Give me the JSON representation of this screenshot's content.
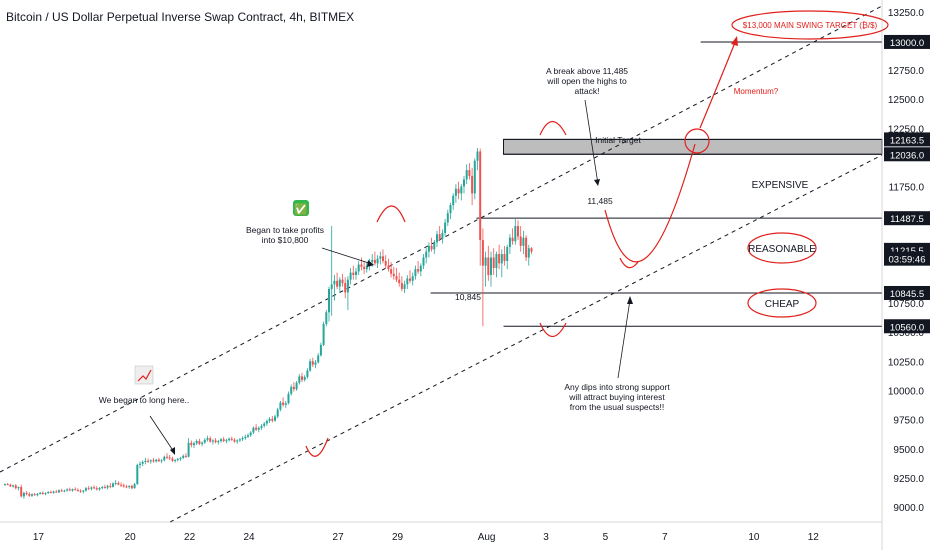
{
  "header": {
    "title": "Bitcoin / US Dollar Perpetual Inverse Swap Contract, 4h, BITMEX"
  },
  "colors": {
    "up": "#26a69a",
    "down": "#ef5350",
    "annotation_red": "#e0201b",
    "line": "#131722",
    "zone": "#bdbdbd"
  },
  "chart_data": {
    "type": "candlestick",
    "title": "Bitcoin / US Dollar Perpetual Inverse Swap Contract, 4h, BITMEX",
    "y_axis": {
      "ylim": [
        8880,
        13360
      ],
      "ticks": [
        "13250.0",
        "12750.0",
        "12500.0",
        "12250.0",
        "11750.0",
        "10750.0",
        "10500.0",
        "10250.0",
        "10000.0",
        "9750.0",
        "9500.0",
        "9250.0",
        "9000.0"
      ],
      "tick_values": [
        13250,
        12750,
        12500,
        12250,
        11750,
        10750,
        10500,
        10250,
        10000,
        9750,
        9500,
        9250,
        9000
      ],
      "price_tags": [
        {
          "label": "13000.0",
          "value": 13000,
          "style": "dark"
        },
        {
          "label": "12163.5",
          "value": 12163.5,
          "style": "dark"
        },
        {
          "label": "12036.0",
          "value": 12036,
          "style": "dark"
        },
        {
          "label": "11487.5",
          "value": 11487.5,
          "style": "dark"
        },
        {
          "label": "11215.5",
          "value": 11215.5,
          "style": "dark"
        },
        {
          "label": "03:59:46",
          "value": 11140,
          "style": "dark"
        },
        {
          "label": "10845.5",
          "value": 10845.5,
          "style": "dark"
        },
        {
          "label": "10560.0",
          "value": 10560,
          "style": "dark"
        }
      ]
    },
    "x_axis": {
      "ticks": [
        "17",
        "20",
        "22",
        "24",
        "27",
        "29",
        "Aug",
        "3",
        "5",
        "7",
        "10",
        "12"
      ],
      "tick_index": [
        12,
        46,
        68,
        90,
        123,
        145,
        178,
        200,
        222,
        244,
        277,
        299
      ]
    },
    "candles_ohlc": [
      [
        9200,
        9210,
        9190,
        9205
      ],
      [
        9205,
        9215,
        9195,
        9200
      ],
      [
        9200,
        9208,
        9180,
        9185
      ],
      [
        9185,
        9200,
        9175,
        9195
      ],
      [
        9195,
        9205,
        9160,
        9170
      ],
      [
        9170,
        9185,
        9150,
        9180
      ],
      [
        9180,
        9200,
        9090,
        9100
      ],
      [
        9100,
        9140,
        9080,
        9130
      ],
      [
        9130,
        9145,
        9110,
        9120
      ],
      [
        9120,
        9135,
        9095,
        9105
      ],
      [
        9105,
        9125,
        9095,
        9118
      ],
      [
        9118,
        9130,
        9105,
        9110
      ],
      [
        9110,
        9128,
        9100,
        9122
      ],
      [
        9122,
        9140,
        9115,
        9130
      ],
      [
        9130,
        9142,
        9115,
        9120
      ],
      [
        9120,
        9135,
        9110,
        9128
      ],
      [
        9128,
        9145,
        9120,
        9138
      ],
      [
        9138,
        9150,
        9125,
        9130
      ],
      [
        9130,
        9148,
        9122,
        9142
      ],
      [
        9142,
        9155,
        9130,
        9135
      ],
      [
        9135,
        9160,
        9128,
        9152
      ],
      [
        9152,
        9165,
        9138,
        9145
      ],
      [
        9145,
        9158,
        9135,
        9150
      ],
      [
        9150,
        9170,
        9140,
        9160
      ],
      [
        9160,
        9175,
        9145,
        9150
      ],
      [
        9150,
        9168,
        9140,
        9162
      ],
      [
        9162,
        9178,
        9150,
        9155
      ],
      [
        9155,
        9170,
        9140,
        9148
      ],
      [
        9148,
        9162,
        9130,
        9140
      ],
      [
        9140,
        9155,
        9125,
        9150
      ],
      [
        9150,
        9180,
        9140,
        9170
      ],
      [
        9170,
        9190,
        9155,
        9165
      ],
      [
        9165,
        9185,
        9150,
        9178
      ],
      [
        9178,
        9195,
        9160,
        9170
      ],
      [
        9170,
        9188,
        9150,
        9160
      ],
      [
        9160,
        9180,
        9148,
        9172
      ],
      [
        9172,
        9190,
        9160,
        9180
      ],
      [
        9180,
        9200,
        9165,
        9175
      ],
      [
        9175,
        9200,
        9160,
        9190
      ],
      [
        9190,
        9215,
        9170,
        9182
      ],
      [
        9182,
        9220,
        9175,
        9210
      ],
      [
        9210,
        9240,
        9195,
        9215
      ],
      [
        9215,
        9230,
        9195,
        9200
      ],
      [
        9200,
        9220,
        9180,
        9195
      ],
      [
        9195,
        9210,
        9175,
        9185
      ],
      [
        9185,
        9200,
        9170,
        9180
      ],
      [
        9180,
        9195,
        9165,
        9190
      ],
      [
        9190,
        9200,
        9160,
        9170
      ],
      [
        9170,
        9215,
        9165,
        9205
      ],
      [
        9205,
        9380,
        9200,
        9370
      ],
      [
        9370,
        9400,
        9340,
        9380
      ],
      [
        9380,
        9410,
        9360,
        9395
      ],
      [
        9395,
        9430,
        9375,
        9405
      ],
      [
        9405,
        9425,
        9385,
        9400
      ],
      [
        9400,
        9418,
        9380,
        9410
      ],
      [
        9410,
        9430,
        9390,
        9400
      ],
      [
        9400,
        9422,
        9390,
        9415
      ],
      [
        9415,
        9430,
        9395,
        9402
      ],
      [
        9402,
        9420,
        9385,
        9410
      ],
      [
        9410,
        9450,
        9400,
        9440
      ],
      [
        9440,
        9470,
        9420,
        9435
      ],
      [
        9435,
        9455,
        9410,
        9425
      ],
      [
        9425,
        9440,
        9395,
        9405
      ],
      [
        9405,
        9420,
        9390,
        9412
      ],
      [
        9412,
        9430,
        9400,
        9420
      ],
      [
        9420,
        9440,
        9405,
        9430
      ],
      [
        9430,
        9460,
        9420,
        9448
      ],
      [
        9448,
        9470,
        9430,
        9440
      ],
      [
        9440,
        9600,
        9435,
        9560
      ],
      [
        9560,
        9580,
        9520,
        9540
      ],
      [
        9540,
        9570,
        9515,
        9555
      ],
      [
        9555,
        9590,
        9540,
        9575
      ],
      [
        9575,
        9595,
        9540,
        9550
      ],
      [
        9550,
        9570,
        9530,
        9562
      ],
      [
        9562,
        9600,
        9550,
        9585
      ],
      [
        9585,
        9620,
        9570,
        9600
      ],
      [
        9600,
        9615,
        9560,
        9570
      ],
      [
        9570,
        9590,
        9545,
        9580
      ],
      [
        9580,
        9600,
        9555,
        9565
      ],
      [
        9565,
        9585,
        9545,
        9575
      ],
      [
        9575,
        9600,
        9560,
        9590
      ],
      [
        9590,
        9610,
        9565,
        9575
      ],
      [
        9575,
        9595,
        9555,
        9582
      ],
      [
        9582,
        9605,
        9570,
        9595
      ],
      [
        9595,
        9612,
        9575,
        9585
      ],
      [
        9585,
        9600,
        9560,
        9570
      ],
      [
        9570,
        9590,
        9550,
        9580
      ],
      [
        9580,
        9600,
        9565,
        9590
      ],
      [
        9590,
        9615,
        9575,
        9600
      ],
      [
        9600,
        9630,
        9585,
        9612
      ],
      [
        9612,
        9640,
        9600,
        9625
      ],
      [
        9625,
        9660,
        9610,
        9648
      ],
      [
        9648,
        9700,
        9635,
        9690
      ],
      [
        9690,
        9720,
        9660,
        9672
      ],
      [
        9672,
        9700,
        9650,
        9688
      ],
      [
        9688,
        9720,
        9670,
        9705
      ],
      [
        9705,
        9740,
        9690,
        9725
      ],
      [
        9725,
        9760,
        9705,
        9748
      ],
      [
        9748,
        9780,
        9730,
        9765
      ],
      [
        9765,
        9790,
        9735,
        9750
      ],
      [
        9750,
        9800,
        9740,
        9785
      ],
      [
        9785,
        9860,
        9770,
        9845
      ],
      [
        9845,
        9920,
        9830,
        9905
      ],
      [
        9905,
        9950,
        9870,
        9885
      ],
      [
        9885,
        9920,
        9860,
        9900
      ],
      [
        9900,
        10000,
        9890,
        9980
      ],
      [
        9980,
        10060,
        9965,
        10040
      ],
      [
        10040,
        10080,
        10000,
        10020
      ],
      [
        10020,
        10090,
        10005,
        10075
      ],
      [
        10075,
        10150,
        10060,
        10130
      ],
      [
        10130,
        10160,
        10080,
        10100
      ],
      [
        10100,
        10140,
        10085,
        10125
      ],
      [
        10125,
        10200,
        10110,
        10180
      ],
      [
        10180,
        10280,
        10170,
        10260
      ],
      [
        10260,
        10290,
        10210,
        10230
      ],
      [
        10230,
        10270,
        10200,
        10250
      ],
      [
        10250,
        10330,
        10240,
        10310
      ],
      [
        10310,
        10420,
        10300,
        10400
      ],
      [
        10400,
        10600,
        10390,
        10580
      ],
      [
        10580,
        10700,
        10560,
        10680
      ],
      [
        10680,
        10900,
        10600,
        10880
      ],
      [
        10880,
        11420,
        10650,
        10920
      ],
      [
        10920,
        11000,
        10780,
        10950
      ],
      [
        10950,
        11020,
        10880,
        10900
      ],
      [
        10900,
        10980,
        10850,
        10960
      ],
      [
        10960,
        11010,
        10900,
        10930
      ],
      [
        10930,
        10980,
        10800,
        10850
      ],
      [
        10850,
        10990,
        10700,
        10960
      ],
      [
        10960,
        11060,
        10920,
        11020
      ],
      [
        11020,
        11080,
        10960,
        11000
      ],
      [
        11000,
        11060,
        10960,
        11030
      ],
      [
        11030,
        11120,
        11000,
        11090
      ],
      [
        11090,
        11150,
        11040,
        11070
      ],
      [
        11070,
        11120,
        11010,
        11050
      ],
      [
        11050,
        11110,
        11020,
        11080
      ],
      [
        11080,
        11140,
        11040,
        11110
      ],
      [
        11110,
        11180,
        11070,
        11130
      ],
      [
        11130,
        11200,
        11080,
        11100
      ],
      [
        11100,
        11170,
        11060,
        11140
      ],
      [
        11140,
        11200,
        11090,
        11160
      ],
      [
        11160,
        11220,
        11100,
        11120
      ],
      [
        11120,
        11170,
        11060,
        11080
      ],
      [
        11080,
        11140,
        11030,
        11050
      ],
      [
        11050,
        11110,
        10980,
        11010
      ],
      [
        11010,
        11070,
        10960,
        10990
      ],
      [
        10990,
        11060,
        10940,
        10960
      ],
      [
        10960,
        11020,
        10900,
        10930
      ],
      [
        10930,
        10990,
        10860,
        10880
      ],
      [
        10880,
        10950,
        10845,
        10920
      ],
      [
        10920,
        11000,
        10880,
        10970
      ],
      [
        10970,
        11040,
        10930,
        10950
      ],
      [
        10950,
        11020,
        10910,
        10990
      ],
      [
        10990,
        11080,
        10960,
        11050
      ],
      [
        11050,
        11120,
        11010,
        11030
      ],
      [
        11030,
        11100,
        10990,
        11080
      ],
      [
        11080,
        11180,
        11050,
        11150
      ],
      [
        11150,
        11230,
        11100,
        11200
      ],
      [
        11200,
        11280,
        11150,
        11250
      ],
      [
        11250,
        11320,
        11200,
        11220
      ],
      [
        11220,
        11300,
        11180,
        11280
      ],
      [
        11280,
        11380,
        11240,
        11350
      ],
      [
        11350,
        11420,
        11290,
        11310
      ],
      [
        11310,
        11390,
        11270,
        11360
      ],
      [
        11360,
        11480,
        11330,
        11450
      ],
      [
        11450,
        11560,
        11420,
        11530
      ],
      [
        11530,
        11620,
        11480,
        11600
      ],
      [
        11600,
        11700,
        11560,
        11680
      ],
      [
        11680,
        11780,
        11620,
        11740
      ],
      [
        11740,
        11800,
        11650,
        11700
      ],
      [
        11700,
        11780,
        11640,
        11760
      ],
      [
        11760,
        11850,
        11700,
        11820
      ],
      [
        11820,
        11950,
        11780,
        11900
      ],
      [
        11900,
        11960,
        11820,
        11850
      ],
      [
        11850,
        11920,
        11600,
        11700
      ],
      [
        11700,
        12000,
        11650,
        11980
      ],
      [
        11980,
        12090,
        11900,
        12060
      ],
      [
        12060,
        12085,
        11080,
        11300
      ],
      [
        11300,
        11400,
        10560,
        11080
      ],
      [
        11080,
        11200,
        10900,
        11150
      ],
      [
        11150,
        11250,
        10950,
        11000
      ],
      [
        11000,
        11200,
        10900,
        11150
      ],
      [
        11150,
        11230,
        11000,
        11060
      ],
      [
        11060,
        11200,
        10980,
        11180
      ],
      [
        11180,
        11260,
        11050,
        11100
      ],
      [
        11100,
        11220,
        10980,
        11180
      ],
      [
        11180,
        11250,
        11080,
        11120
      ],
      [
        11120,
        11260,
        11050,
        11240
      ],
      [
        11240,
        11350,
        11180,
        11320
      ],
      [
        11320,
        11400,
        11260,
        11290
      ],
      [
        11290,
        11480,
        11260,
        11420
      ],
      [
        11420,
        11470,
        11300,
        11330
      ],
      [
        11330,
        11420,
        11200,
        11250
      ],
      [
        11250,
        11380,
        11180,
        11320
      ],
      [
        11320,
        11340,
        11120,
        11150
      ],
      [
        11150,
        11260,
        11080,
        11230
      ],
      [
        11230,
        11240,
        11180,
        11200
      ]
    ],
    "levels": [
      {
        "name": "13000 target",
        "value": 13000,
        "x_start_index": 258
      },
      {
        "name": "initial target top",
        "value": 12163.5,
        "x_start_index": 185
      },
      {
        "name": "initial target bottom",
        "value": 12036,
        "x_start_index": 185
      },
      {
        "name": "11487.5",
        "value": 11487.5,
        "x_start_index": 175
      },
      {
        "name": "10845.5",
        "value": 10845.5,
        "x_start_index": 158
      },
      {
        "name": "10560.0",
        "value": 10560,
        "x_start_index": 185
      }
    ],
    "annotations": {
      "target_label": "$13,000 MAIN SWING TARGET (₿/$)",
      "initial_target": "Initial Target",
      "expensive": "EXPENSIVE",
      "reasonable": "REASONABLE",
      "cheap": "CHEAP",
      "momentum": "Momentum?",
      "break_note": [
        "A break above 11,485",
        "will open the highs to",
        "attack!"
      ],
      "level_11485": "11,485",
      "level_10845": "10,845",
      "profits_note": [
        "Began to take profits",
        "into $10,800"
      ],
      "long_note": "We began to long here..",
      "dips_note": [
        "Any dips into strong support",
        "will attract buying interest",
        "from the usual suspects!!"
      ],
      "check_emoji": "✅",
      "chart_emoji": "📈"
    }
  }
}
